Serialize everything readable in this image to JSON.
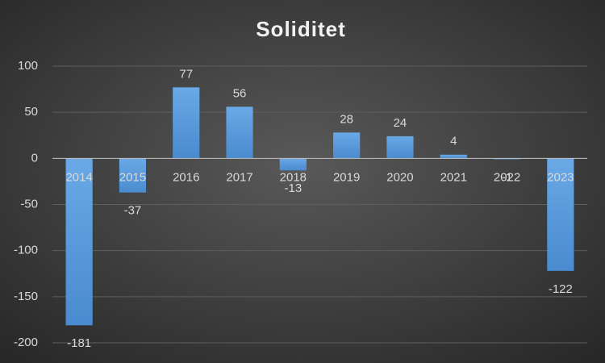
{
  "chart_data": {
    "type": "bar",
    "title": "Soliditet",
    "categories": [
      "2014",
      "2015",
      "2016",
      "2017",
      "2018",
      "2019",
      "2020",
      "2021",
      "2022",
      "2023"
    ],
    "values": [
      -181,
      -37,
      77,
      56,
      -13,
      28,
      24,
      4,
      -1,
      -122
    ],
    "color": "#5b9bd5",
    "ylim": [
      -200,
      100
    ],
    "yticks": [
      -200,
      -150,
      -100,
      -50,
      0,
      50,
      100
    ],
    "grid": true
  }
}
